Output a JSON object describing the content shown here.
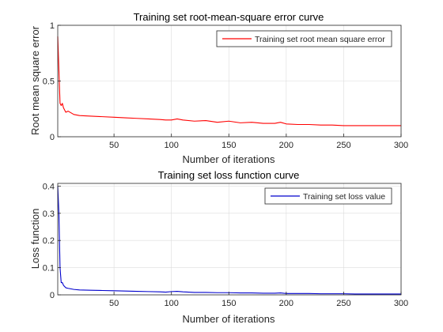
{
  "chart_data": [
    {
      "type": "line",
      "title": "Training set root-mean-square error curve",
      "xlabel": "Number of iterations",
      "ylabel": "Root mean square error",
      "xlim": [
        1,
        300
      ],
      "ylim": [
        0,
        1
      ],
      "xticks": [
        50,
        100,
        150,
        200,
        250,
        300
      ],
      "yticks": [
        0,
        0.5,
        1
      ],
      "grid": true,
      "legend_position": "top-right",
      "series": [
        {
          "name": "Training set root mean square error",
          "color": "#ff0000",
          "x": [
            1,
            2,
            3,
            4,
            5,
            6,
            8,
            10,
            15,
            20,
            30,
            40,
            50,
            60,
            70,
            80,
            90,
            95,
            100,
            105,
            110,
            120,
            130,
            140,
            150,
            160,
            170,
            180,
            190,
            195,
            200,
            210,
            220,
            230,
            240,
            250,
            260,
            270,
            280,
            290,
            300
          ],
          "y": [
            0.9,
            0.6,
            0.3,
            0.28,
            0.3,
            0.26,
            0.22,
            0.23,
            0.2,
            0.19,
            0.185,
            0.18,
            0.175,
            0.17,
            0.165,
            0.16,
            0.155,
            0.15,
            0.15,
            0.16,
            0.15,
            0.14,
            0.145,
            0.13,
            0.14,
            0.125,
            0.13,
            0.12,
            0.12,
            0.13,
            0.115,
            0.11,
            0.11,
            0.105,
            0.105,
            0.1,
            0.1,
            0.1,
            0.1,
            0.1,
            0.1
          ]
        }
      ]
    },
    {
      "type": "line",
      "title": "Training set loss function curve",
      "xlabel": "Number of iterations",
      "ylabel": "Loss function",
      "xlim": [
        1,
        300
      ],
      "ylim": [
        0,
        0.41
      ],
      "xticks": [
        50,
        100,
        150,
        200,
        250,
        300
      ],
      "yticks": [
        0,
        0.1,
        0.2,
        0.3,
        0.4
      ],
      "grid": true,
      "legend_position": "top-right",
      "series": [
        {
          "name": "Training set loss value",
          "color": "#0000cd",
          "x": [
            1,
            2,
            3,
            4,
            5,
            6,
            8,
            10,
            15,
            20,
            30,
            40,
            50,
            60,
            70,
            80,
            90,
            95,
            100,
            105,
            110,
            120,
            130,
            140,
            150,
            160,
            170,
            180,
            190,
            195,
            200,
            210,
            220,
            230,
            240,
            250,
            260,
            270,
            280,
            290,
            300
          ],
          "y": [
            0.4,
            0.3,
            0.1,
            0.045,
            0.045,
            0.035,
            0.026,
            0.024,
            0.02,
            0.018,
            0.017,
            0.016,
            0.015,
            0.014,
            0.013,
            0.012,
            0.011,
            0.01,
            0.012,
            0.013,
            0.011,
            0.009,
            0.009,
            0.008,
            0.008,
            0.007,
            0.007,
            0.006,
            0.006,
            0.007,
            0.005,
            0.005,
            0.005,
            0.004,
            0.004,
            0.004,
            0.003,
            0.003,
            0.003,
            0.003,
            0.003
          ]
        }
      ]
    }
  ],
  "colors": {
    "axes": "#262626",
    "grid": "#dcdcdc"
  }
}
